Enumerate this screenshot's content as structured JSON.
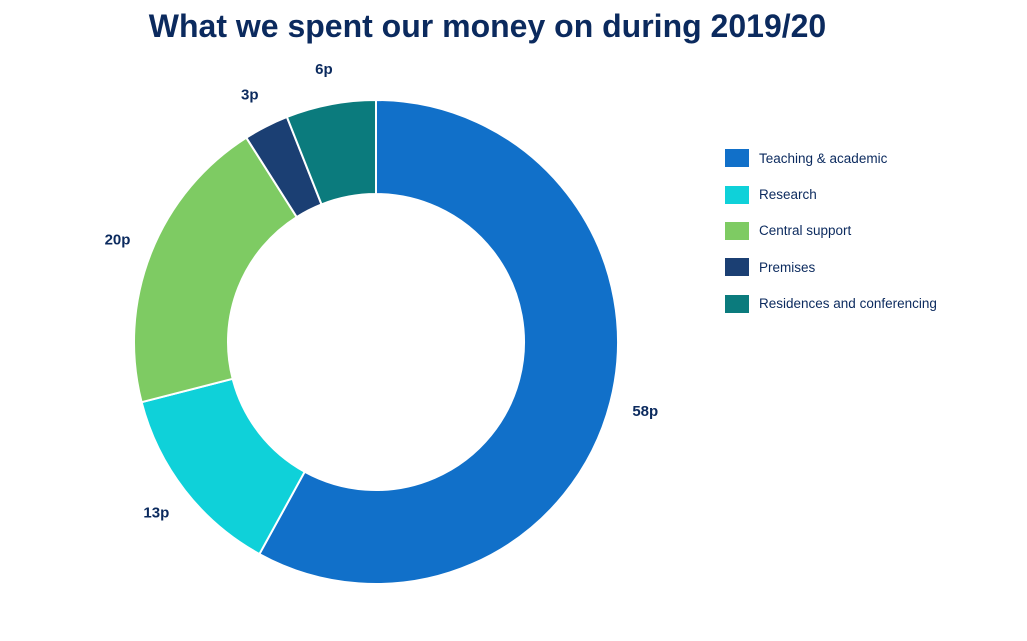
{
  "chart_data": {
    "type": "pie",
    "style": "donut",
    "title": "What we spent our money on during 2019/20",
    "categories": [
      "Teaching & academic",
      "Research",
      "Central support",
      "Premises",
      "Residences and conferencing"
    ],
    "values": [
      58,
      13,
      20,
      3,
      6
    ],
    "data_labels": [
      "58p",
      "13p",
      "20p",
      "3p",
      "6p"
    ],
    "colors": [
      "#1170c9",
      "#0fd1d9",
      "#7ecb63",
      "#1b3f73",
      "#0b7b7d"
    ],
    "legend_position": "right"
  }
}
